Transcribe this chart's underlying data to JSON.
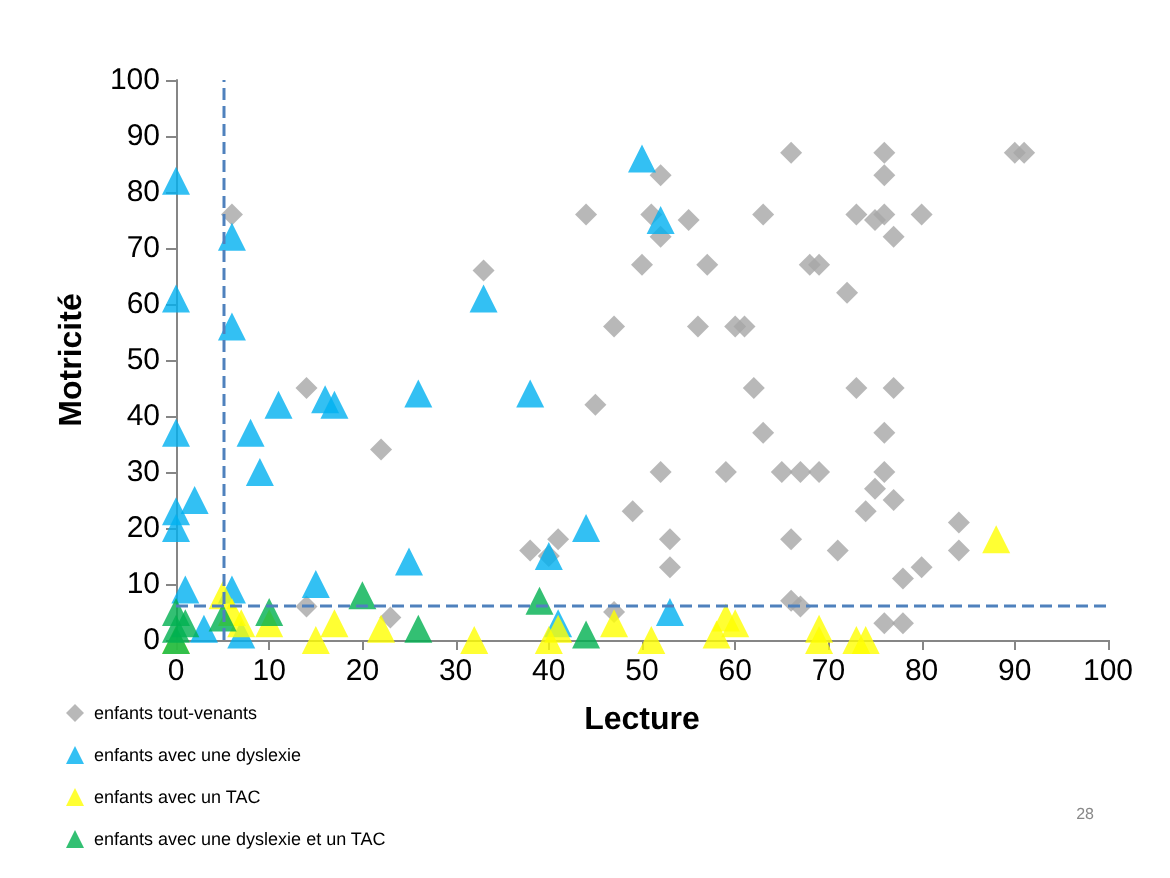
{
  "chart_data": {
    "type": "scatter",
    "xlabel": "Lecture",
    "ylabel": "Motricité",
    "xlim": [
      0,
      100
    ],
    "xticks": [
      0,
      10,
      20,
      30,
      40,
      50,
      60,
      70,
      80,
      90,
      100
    ],
    "ylim": [
      0,
      100
    ],
    "yticks": [
      0,
      10,
      20,
      30,
      40,
      50,
      60,
      70,
      80,
      90,
      100
    ],
    "grid": false,
    "legend": "bottom left",
    "ref_lines": [
      {
        "axis": "x",
        "value": 5,
        "label": null,
        "color": "#4f81bd",
        "line_style": "dashed"
      },
      {
        "axis": "y",
        "value": 6,
        "label": null,
        "color": "#4f81bd",
        "line_style": "dashed"
      }
    ],
    "annotations": [
      "28"
    ],
    "series": [
      {
        "name": "enfants tout-venants",
        "color": "#a6a6a6",
        "marker": "diamond",
        "x": [
          6,
          14,
          14,
          22,
          23,
          33,
          38,
          40,
          41,
          44,
          45,
          47,
          47,
          49,
          50,
          51,
          52,
          52,
          52,
          53,
          53,
          55,
          56,
          57,
          59,
          60,
          61,
          62,
          63,
          63,
          65,
          66,
          66,
          66,
          67,
          68,
          69,
          69,
          71,
          72,
          73,
          73,
          74,
          75,
          75,
          76,
          76,
          76,
          76,
          76,
          77,
          77,
          77,
          78,
          76,
          78,
          80,
          80,
          84,
          84,
          90,
          91,
          67
        ],
        "values": [
          76,
          45,
          6,
          34,
          4,
          66,
          16,
          15,
          18,
          76,
          42,
          56,
          5,
          23,
          67,
          76,
          83,
          72,
          30,
          18,
          13,
          75,
          56,
          67,
          30,
          56,
          56,
          45,
          37,
          76,
          30,
          87,
          18,
          7,
          6,
          67,
          30,
          67,
          16,
          62,
          45,
          76,
          23,
          75,
          27,
          76,
          37,
          83,
          87,
          30,
          72,
          45,
          25,
          11,
          3,
          3,
          76,
          13,
          21,
          16,
          87,
          87,
          30
        ]
      },
      {
        "name": "enfants avec une dyslexie",
        "color": "#00b0f0",
        "marker": "triangle",
        "x": [
          0,
          0,
          0,
          0,
          0,
          1,
          2,
          3,
          6,
          6,
          6,
          7,
          8,
          9,
          11,
          16,
          17,
          15,
          25,
          26,
          33,
          38,
          40,
          41,
          44,
          50,
          52,
          53
        ],
        "values": [
          82,
          61,
          37,
          23,
          20,
          9,
          25,
          2,
          72,
          56,
          9,
          1,
          37,
          30,
          42,
          43,
          42,
          10,
          14,
          44,
          61,
          44,
          15,
          3,
          20,
          86,
          75,
          5
        ]
      },
      {
        "name": "enfants avec un TAC",
        "color": "#ffff00",
        "marker": "triangle",
        "x": [
          0,
          5,
          6,
          7,
          10,
          15,
          17,
          22,
          32,
          40,
          41,
          47,
          51,
          58,
          59,
          60,
          69,
          69,
          73,
          74,
          88
        ],
        "values": [
          0,
          8,
          5,
          3,
          3,
          0,
          3,
          2,
          0,
          0,
          2,
          3,
          0,
          1,
          4,
          3,
          2,
          0,
          0,
          0,
          18
        ]
      },
      {
        "name": "enfants avec une dyslexie et un TAC",
        "color": "#00b050",
        "marker": "triangle",
        "x": [
          0,
          0,
          0,
          1,
          5,
          10,
          20,
          26,
          39,
          44
        ],
        "values": [
          5,
          2,
          0,
          3,
          4,
          5,
          8,
          2,
          7,
          1
        ]
      }
    ]
  }
}
